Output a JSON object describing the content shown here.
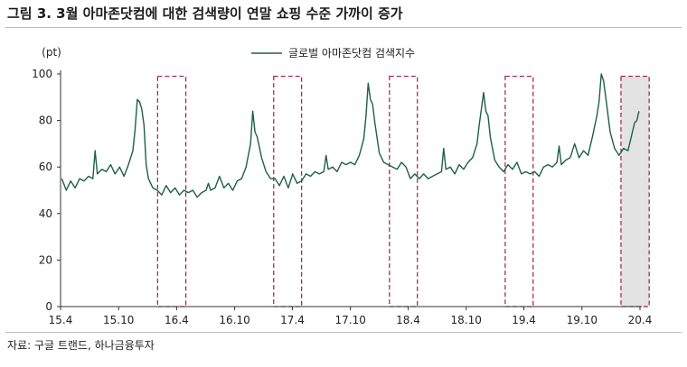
{
  "figure": {
    "title": "그림 3. 3월 아마존닷컴에 대한 검색량이 연말 쇼핑 수준 가까이 증가",
    "source": "자료: 구글 트랜드, 하나금융투자"
  },
  "chart_data": {
    "type": "line",
    "title": "그림 3. 3월 아마존닷컴에 대한 검색량이 연말 쇼핑 수준 가까이 증가",
    "ylabel": "(pt)",
    "xlabel": "",
    "ylim": [
      0,
      100
    ],
    "yticks": [
      0,
      20,
      40,
      60,
      80,
      100
    ],
    "xlim": [
      "2015-04-01",
      "2020-04-01"
    ],
    "xticks": [
      {
        "label": "15.4",
        "date": "2015-04-01"
      },
      {
        "label": "15.10",
        "date": "2015-10-01"
      },
      {
        "label": "16.4",
        "date": "2016-04-01"
      },
      {
        "label": "16.10",
        "date": "2016-10-01"
      },
      {
        "label": "17.4",
        "date": "2017-04-01"
      },
      {
        "label": "17.10",
        "date": "2017-10-01"
      },
      {
        "label": "18.4",
        "date": "2018-04-01"
      },
      {
        "label": "18.10",
        "date": "2018-10-01"
      },
      {
        "label": "19.4",
        "date": "2019-04-01"
      },
      {
        "label": "19.10",
        "date": "2019-10-01"
      },
      {
        "label": "20.4",
        "date": "2020-04-01"
      }
    ],
    "legend_position": "top-center",
    "grid": false,
    "series": [
      {
        "name": "글로벌 아마존닷컴 검색지수",
        "color": "#1e5e4a",
        "points": [
          [
            "2015-04-05",
            55
          ],
          [
            "2015-04-19",
            50
          ],
          [
            "2015-05-03",
            54
          ],
          [
            "2015-05-17",
            51
          ],
          [
            "2015-05-31",
            55
          ],
          [
            "2015-06-14",
            54
          ],
          [
            "2015-06-28",
            56
          ],
          [
            "2015-07-12",
            55
          ],
          [
            "2015-07-19",
            67
          ],
          [
            "2015-07-26",
            57
          ],
          [
            "2015-08-09",
            59
          ],
          [
            "2015-08-23",
            58
          ],
          [
            "2015-09-06",
            61
          ],
          [
            "2015-09-20",
            57
          ],
          [
            "2015-10-04",
            60
          ],
          [
            "2015-10-18",
            56
          ],
          [
            "2015-11-01",
            61
          ],
          [
            "2015-11-15",
            67
          ],
          [
            "2015-11-22",
            76
          ],
          [
            "2015-11-29",
            89
          ],
          [
            "2015-12-06",
            88
          ],
          [
            "2015-12-13",
            85
          ],
          [
            "2015-12-20",
            78
          ],
          [
            "2015-12-27",
            61
          ],
          [
            "2016-01-03",
            55
          ],
          [
            "2016-01-17",
            51
          ],
          [
            "2016-01-31",
            50
          ],
          [
            "2016-02-14",
            48
          ],
          [
            "2016-02-28",
            52
          ],
          [
            "2016-03-13",
            49
          ],
          [
            "2016-03-27",
            51
          ],
          [
            "2016-04-10",
            48
          ],
          [
            "2016-04-24",
            50
          ],
          [
            "2016-05-08",
            49
          ],
          [
            "2016-05-22",
            50
          ],
          [
            "2016-06-05",
            47
          ],
          [
            "2016-06-19",
            49
          ],
          [
            "2016-07-03",
            50
          ],
          [
            "2016-07-10",
            53
          ],
          [
            "2016-07-17",
            50
          ],
          [
            "2016-07-31",
            51
          ],
          [
            "2016-08-14",
            56
          ],
          [
            "2016-08-28",
            51
          ],
          [
            "2016-09-11",
            53
          ],
          [
            "2016-09-25",
            50
          ],
          [
            "2016-10-09",
            54
          ],
          [
            "2016-10-23",
            55
          ],
          [
            "2016-11-06",
            60
          ],
          [
            "2016-11-20",
            70
          ],
          [
            "2016-11-27",
            84
          ],
          [
            "2016-12-04",
            75
          ],
          [
            "2016-12-11",
            73
          ],
          [
            "2016-12-25",
            64
          ],
          [
            "2017-01-08",
            58
          ],
          [
            "2017-01-22",
            55
          ],
          [
            "2017-02-05",
            55
          ],
          [
            "2017-02-19",
            52
          ],
          [
            "2017-03-05",
            56
          ],
          [
            "2017-03-19",
            51
          ],
          [
            "2017-04-02",
            57
          ],
          [
            "2017-04-16",
            53
          ],
          [
            "2017-04-30",
            54
          ],
          [
            "2017-05-14",
            57
          ],
          [
            "2017-05-28",
            56
          ],
          [
            "2017-06-11",
            58
          ],
          [
            "2017-06-25",
            57
          ],
          [
            "2017-07-09",
            58
          ],
          [
            "2017-07-16",
            65
          ],
          [
            "2017-07-23",
            59
          ],
          [
            "2017-08-06",
            60
          ],
          [
            "2017-08-20",
            58
          ],
          [
            "2017-09-03",
            62
          ],
          [
            "2017-09-17",
            61
          ],
          [
            "2017-10-01",
            62
          ],
          [
            "2017-10-15",
            61
          ],
          [
            "2017-10-29",
            65
          ],
          [
            "2017-11-12",
            72
          ],
          [
            "2017-11-19",
            82
          ],
          [
            "2017-11-26",
            96
          ],
          [
            "2017-12-03",
            89
          ],
          [
            "2017-12-10",
            87
          ],
          [
            "2017-12-17",
            79
          ],
          [
            "2017-12-31",
            66
          ],
          [
            "2018-01-14",
            62
          ],
          [
            "2018-01-28",
            61
          ],
          [
            "2018-02-11",
            60
          ],
          [
            "2018-02-25",
            59
          ],
          [
            "2018-03-11",
            62
          ],
          [
            "2018-03-25",
            60
          ],
          [
            "2018-04-08",
            55
          ],
          [
            "2018-04-22",
            57
          ],
          [
            "2018-05-06",
            55
          ],
          [
            "2018-05-20",
            57
          ],
          [
            "2018-06-03",
            55
          ],
          [
            "2018-06-17",
            56
          ],
          [
            "2018-07-01",
            57
          ],
          [
            "2018-07-15",
            58
          ],
          [
            "2018-07-22",
            68
          ],
          [
            "2018-07-29",
            59
          ],
          [
            "2018-08-12",
            60
          ],
          [
            "2018-08-26",
            57
          ],
          [
            "2018-09-09",
            61
          ],
          [
            "2018-09-23",
            59
          ],
          [
            "2018-10-07",
            62
          ],
          [
            "2018-10-21",
            64
          ],
          [
            "2018-11-04",
            70
          ],
          [
            "2018-11-11",
            78
          ],
          [
            "2018-11-25",
            92
          ],
          [
            "2018-12-02",
            84
          ],
          [
            "2018-12-09",
            82
          ],
          [
            "2018-12-16",
            73
          ],
          [
            "2018-12-30",
            63
          ],
          [
            "2019-01-13",
            60
          ],
          [
            "2019-01-27",
            58
          ],
          [
            "2019-02-10",
            61
          ],
          [
            "2019-02-24",
            59
          ],
          [
            "2019-03-10",
            62
          ],
          [
            "2019-03-24",
            57
          ],
          [
            "2019-04-07",
            58
          ],
          [
            "2019-04-21",
            57
          ],
          [
            "2019-05-05",
            58
          ],
          [
            "2019-05-19",
            56
          ],
          [
            "2019-06-02",
            60
          ],
          [
            "2019-06-16",
            61
          ],
          [
            "2019-06-30",
            60
          ],
          [
            "2019-07-14",
            62
          ],
          [
            "2019-07-21",
            69
          ],
          [
            "2019-07-28",
            61
          ],
          [
            "2019-08-11",
            63
          ],
          [
            "2019-08-25",
            64
          ],
          [
            "2019-09-08",
            70
          ],
          [
            "2019-09-22",
            64
          ],
          [
            "2019-10-06",
            67
          ],
          [
            "2019-10-20",
            65
          ],
          [
            "2019-11-03",
            73
          ],
          [
            "2019-11-17",
            82
          ],
          [
            "2019-11-24",
            88
          ],
          [
            "2019-12-01",
            100
          ],
          [
            "2019-12-08",
            97
          ],
          [
            "2019-12-15",
            90
          ],
          [
            "2019-12-29",
            75
          ],
          [
            "2020-01-12",
            68
          ],
          [
            "2020-01-26",
            65
          ],
          [
            "2020-02-09",
            68
          ],
          [
            "2020-02-23",
            67
          ],
          [
            "2020-03-08",
            75
          ],
          [
            "2020-03-15",
            79
          ],
          [
            "2020-03-22",
            80
          ],
          [
            "2020-03-29",
            84
          ]
        ]
      }
    ],
    "highlights": [
      {
        "start": "2016-02-01",
        "end": "2016-04-30",
        "shaded": false
      },
      {
        "start": "2017-02-01",
        "end": "2017-04-30",
        "shaded": false
      },
      {
        "start": "2018-02-01",
        "end": "2018-04-30",
        "shaded": false
      },
      {
        "start": "2019-02-01",
        "end": "2019-04-30",
        "shaded": false
      },
      {
        "start": "2020-02-01",
        "end": "2020-04-30",
        "shaded": true
      }
    ],
    "highlight_color": "#a21a4f"
  }
}
